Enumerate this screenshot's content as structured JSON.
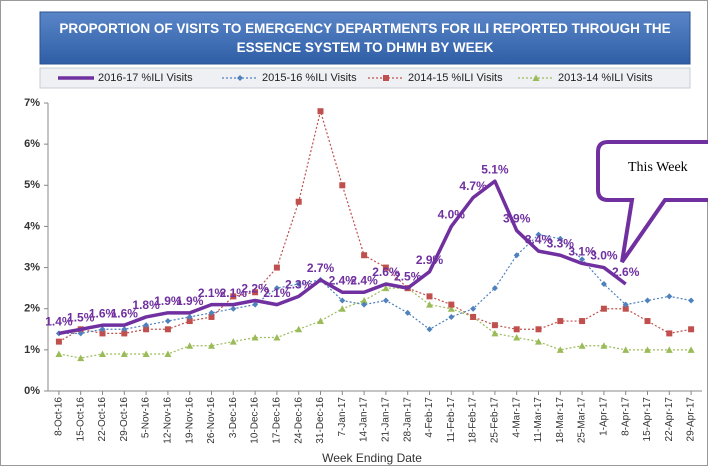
{
  "chart_data": {
    "type": "line",
    "title": "PROPORTION OF VISITS TO EMERGENCY DEPARTMENTS FOR ILI REPORTED THROUGH THE ESSENCE SYSTEM TO DHMH BY WEEK",
    "x_label": "Week Ending Date",
    "annotation": "This Week",
    "categories": [
      "8-Oct-16",
      "15-Oct-16",
      "22-Oct-16",
      "29-Oct-16",
      "5-Nov-16",
      "12-Nov-16",
      "19-Nov-16",
      "26-Nov-16",
      "3-Dec-16",
      "10-Dec-16",
      "17-Dec-16",
      "24-Dec-16",
      "31-Dec-16",
      "7-Jan-17",
      "14-Jan-17",
      "21-Jan-17",
      "28-Jan-17",
      "4-Feb-17",
      "11-Feb-17",
      "18-Feb-17",
      "25-Feb-17",
      "4-Mar-17",
      "11-Mar-17",
      "18-Mar-17",
      "25-Mar-17",
      "1-Apr-17",
      "8-Apr-17",
      "15-Apr-17",
      "22-Apr-17",
      "29-Apr-17"
    ],
    "series": [
      {
        "name": "2016-17 %ILI Visits",
        "color": "#7030a0",
        "line_width": 3.5,
        "dashed": false,
        "marker": "none",
        "values": [
          1.4,
          1.5,
          1.6,
          1.6,
          1.8,
          1.9,
          1.9,
          2.1,
          2.1,
          2.2,
          2.1,
          2.3,
          2.7,
          2.4,
          2.4,
          2.6,
          2.5,
          2.9,
          4.0,
          4.7,
          5.1,
          3.9,
          3.4,
          3.3,
          3.1,
          3.0,
          2.6,
          null,
          null,
          null
        ],
        "value_labels": [
          "1.4%",
          "1.5%",
          "1.6%",
          "1.6%",
          "1.8%",
          "1.9%",
          "1.9%",
          "2.1%",
          "2.1%",
          "2.2%",
          "2.1%",
          "2.3%",
          "2.7%",
          "2.4%",
          "2.4%",
          "2.6%",
          "2.5%",
          "2.9%",
          "4.0%",
          "4.7%",
          "5.1%",
          "3.9%",
          "3.4%",
          "3.3%",
          "3.1%",
          "3.0%",
          "2.6%",
          null,
          null,
          null
        ]
      },
      {
        "name": "2015-16 %ILI Visits",
        "color": "#4f81bd",
        "line_width": 1.2,
        "dashed": true,
        "marker": "diamond",
        "values": [
          1.4,
          1.4,
          1.5,
          1.5,
          1.6,
          1.7,
          1.8,
          1.9,
          2.0,
          2.1,
          2.5,
          2.6,
          2.7,
          2.2,
          2.1,
          2.2,
          1.9,
          1.5,
          1.8,
          2.0,
          2.5,
          3.3,
          3.8,
          3.7,
          3.2,
          2.6,
          2.1,
          2.2,
          2.3,
          2.2
        ]
      },
      {
        "name": "2014-15 %ILI Visits",
        "color": "#c0504d",
        "line_width": 1.2,
        "dashed": true,
        "marker": "square",
        "values": [
          1.2,
          1.5,
          1.4,
          1.4,
          1.5,
          1.5,
          1.7,
          1.8,
          2.3,
          2.4,
          3.0,
          4.6,
          6.8,
          5.0,
          3.3,
          3.0,
          2.5,
          2.3,
          2.1,
          1.8,
          1.6,
          1.5,
          1.5,
          1.7,
          1.7,
          2.0,
          2.0,
          1.7,
          1.4,
          1.5
        ]
      },
      {
        "name": "2013-14 %ILI Visits",
        "color": "#9bbb59",
        "line_width": 1.2,
        "dashed": true,
        "marker": "triangle",
        "values": [
          0.9,
          0.8,
          0.9,
          0.9,
          0.9,
          0.9,
          1.1,
          1.1,
          1.2,
          1.3,
          1.3,
          1.5,
          1.7,
          2.0,
          2.2,
          2.5,
          2.5,
          2.1,
          2.0,
          1.8,
          1.4,
          1.3,
          1.2,
          1.0,
          1.1,
          1.1,
          1.0,
          1.0,
          1.0,
          1.0
        ]
      }
    ],
    "ylim": [
      0,
      7
    ],
    "yticks": [
      {
        "value": 0,
        "label": "0%"
      },
      {
        "value": 1,
        "label": "1%"
      },
      {
        "value": 2,
        "label": "2%"
      },
      {
        "value": 3,
        "label": "3%"
      },
      {
        "value": 4,
        "label": "4%"
      },
      {
        "value": 5,
        "label": "5%"
      },
      {
        "value": 6,
        "label": "6%"
      },
      {
        "value": 7,
        "label": "7%"
      }
    ],
    "grid": false
  }
}
